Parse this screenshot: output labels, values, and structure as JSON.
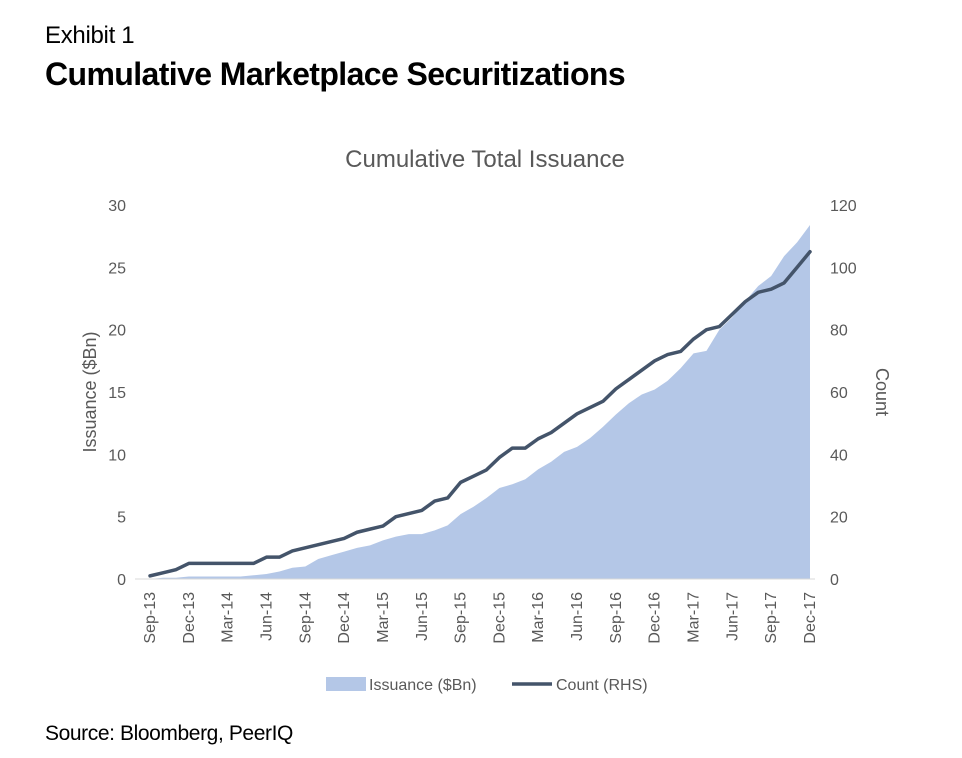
{
  "header": {
    "exhibit": "Exhibit 1",
    "title": "Cumulative Marketplace Securitizations"
  },
  "footer": {
    "source": "Source: Bloomberg, PeerIQ"
  },
  "chart_data": {
    "type": "area",
    "title": "Cumulative Total Issuance",
    "xlabel": "",
    "ylabel": "Issuance ($Bn)",
    "y2label": "Count",
    "ylim": [
      0,
      30
    ],
    "y2lim": [
      0,
      120
    ],
    "yticks": [
      0,
      5,
      10,
      15,
      20,
      25,
      30
    ],
    "y2ticks": [
      0,
      20,
      40,
      60,
      80,
      100,
      120
    ],
    "xtick_labels": [
      "Sep-13",
      "Dec-13",
      "Mar-14",
      "Jun-14",
      "Sep-14",
      "Dec-14",
      "Mar-15",
      "Jun-15",
      "Sep-15",
      "Dec-15",
      "Mar-16",
      "Jun-16",
      "Sep-16",
      "Dec-16",
      "Mar-17",
      "Jun-17",
      "Sep-17",
      "Dec-17"
    ],
    "grid": false,
    "legend_position": "bottom",
    "x": [
      "Sep-13",
      "Oct-13",
      "Nov-13",
      "Dec-13",
      "Jan-14",
      "Feb-14",
      "Mar-14",
      "Apr-14",
      "May-14",
      "Jun-14",
      "Jul-14",
      "Aug-14",
      "Sep-14",
      "Oct-14",
      "Nov-14",
      "Dec-14",
      "Jan-15",
      "Feb-15",
      "Mar-15",
      "Apr-15",
      "May-15",
      "Jun-15",
      "Jul-15",
      "Aug-15",
      "Sep-15",
      "Oct-15",
      "Nov-15",
      "Dec-15",
      "Jan-16",
      "Feb-16",
      "Mar-16",
      "Apr-16",
      "May-16",
      "Jun-16",
      "Jul-16",
      "Aug-16",
      "Sep-16",
      "Oct-16",
      "Nov-16",
      "Dec-16",
      "Jan-17",
      "Feb-17",
      "Mar-17",
      "Apr-17",
      "May-17",
      "Jun-17",
      "Jul-17",
      "Aug-17",
      "Sep-17",
      "Oct-17",
      "Nov-17",
      "Dec-17"
    ],
    "series": [
      {
        "name": "Issuance ($Bn)",
        "type": "area",
        "axis": "left",
        "color": "#b4c7e7",
        "values": [
          0.0,
          0.1,
          0.1,
          0.2,
          0.2,
          0.2,
          0.2,
          0.2,
          0.3,
          0.4,
          0.6,
          0.9,
          1.0,
          1.6,
          1.9,
          2.2,
          2.5,
          2.7,
          3.1,
          3.4,
          3.6,
          3.6,
          3.9,
          4.3,
          5.2,
          5.8,
          6.5,
          7.3,
          7.6,
          8.0,
          8.8,
          9.4,
          10.2,
          10.6,
          11.3,
          12.2,
          13.2,
          14.1,
          14.8,
          15.2,
          15.9,
          16.9,
          18.1,
          18.3,
          20.0,
          21.0,
          22.3,
          23.5,
          24.3,
          25.9,
          27.0,
          28.4
        ]
      },
      {
        "name": "Count (RHS)",
        "type": "line",
        "axis": "right",
        "color": "#44546a",
        "values": [
          1,
          2,
          3,
          5,
          5,
          5,
          5,
          5,
          5,
          7,
          7,
          9,
          10,
          11,
          12,
          13,
          15,
          16,
          17,
          20,
          21,
          22,
          25,
          26,
          31,
          33,
          35,
          39,
          42,
          42,
          45,
          47,
          50,
          53,
          55,
          57,
          61,
          64,
          67,
          70,
          72,
          73,
          77,
          80,
          81,
          85,
          89,
          92,
          93,
          95,
          100,
          105
        ]
      }
    ]
  }
}
